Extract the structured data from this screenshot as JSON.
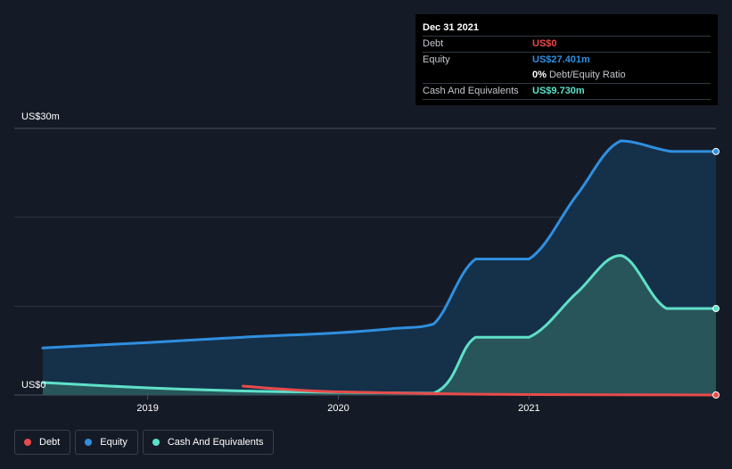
{
  "tooltip": {
    "date": "Dec 31 2021",
    "rows": [
      {
        "label": "Debt",
        "value": "US$0",
        "color": "#e84b4b"
      },
      {
        "label": "Equity",
        "value": "US$27.401m",
        "color": "#2f8fe0"
      },
      {
        "label": "",
        "value": "0%",
        "suffix": "Debt/Equity Ratio",
        "color": "#ffffff"
      },
      {
        "label": "Cash And Equivalents",
        "value": "US$9.730m",
        "color": "#5fe0c8"
      }
    ]
  },
  "legend": [
    {
      "label": "Debt",
      "color": "#e84b4b"
    },
    {
      "label": "Equity",
      "color": "#2f8fe0"
    },
    {
      "label": "Cash And Equivalents",
      "color": "#5fe0c8"
    }
  ],
  "chart_data": {
    "type": "area",
    "y_axis_labels": [
      "US$30m",
      "US$0"
    ],
    "ylim": [
      0,
      30
    ],
    "x_ticks": [
      {
        "label": "2019",
        "x": 2019.0
      },
      {
        "label": "2020",
        "x": 2020.0
      },
      {
        "label": "2021",
        "x": 2021.0
      }
    ],
    "xlim": [
      2018.45,
      2021.98
    ],
    "grid": true,
    "legend_position": "bottom-left",
    "series": [
      {
        "name": "Equity",
        "color": "#2f8fe0",
        "fill": "#153450",
        "points": [
          [
            2018.45,
            5.3
          ],
          [
            2019.0,
            5.9
          ],
          [
            2019.5,
            6.5
          ],
          [
            2020.0,
            7.0
          ],
          [
            2020.3,
            7.5
          ],
          [
            2020.5,
            8.0
          ],
          [
            2020.72,
            15.3
          ],
          [
            2021.0,
            15.3
          ],
          [
            2021.25,
            22.5
          ],
          [
            2021.48,
            28.6
          ],
          [
            2021.75,
            27.4
          ],
          [
            2021.98,
            27.4
          ]
        ]
      },
      {
        "name": "Cash And Equivalents",
        "color": "#5fe0c8",
        "fill": "#2a5a5c",
        "points": [
          [
            2018.45,
            1.4
          ],
          [
            2019.0,
            0.8
          ],
          [
            2019.5,
            0.45
          ],
          [
            2020.0,
            0.3
          ],
          [
            2020.5,
            0.2
          ],
          [
            2020.72,
            6.5
          ],
          [
            2021.0,
            6.5
          ],
          [
            2021.25,
            11.5
          ],
          [
            2021.48,
            15.7
          ],
          [
            2021.72,
            9.73
          ],
          [
            2021.98,
            9.73
          ]
        ]
      },
      {
        "name": "Debt",
        "color": "#e84b4b",
        "points": [
          [
            2019.5,
            1.0
          ],
          [
            2019.75,
            0.6
          ],
          [
            2020.0,
            0.35
          ],
          [
            2020.5,
            0.15
          ],
          [
            2021.0,
            0.05
          ],
          [
            2021.98,
            0.0
          ]
        ]
      }
    ]
  }
}
